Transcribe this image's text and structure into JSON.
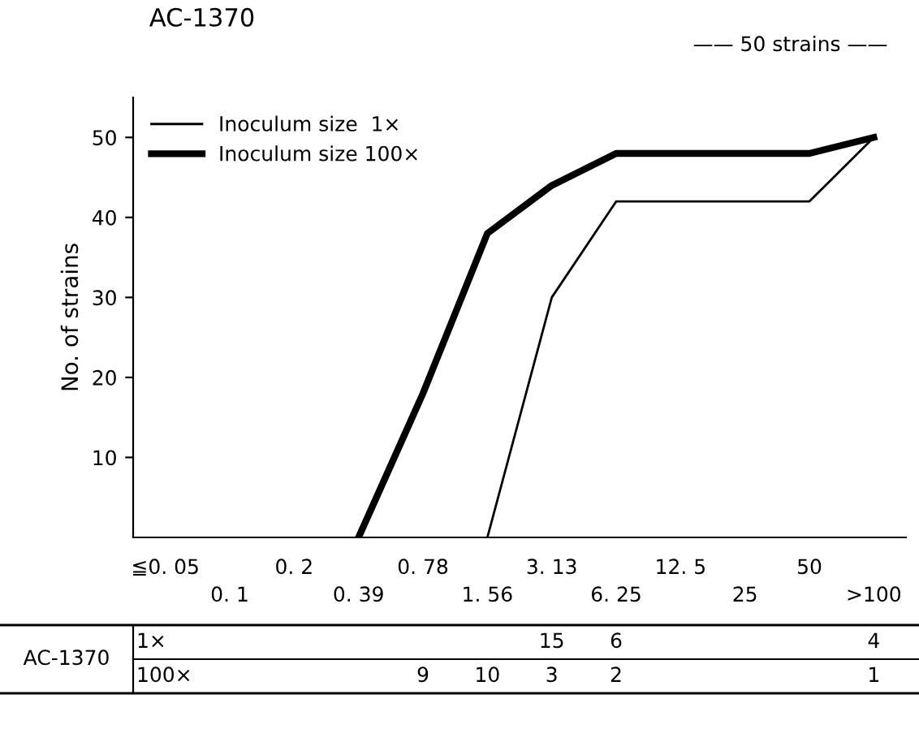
{
  "chart_data": [
    {
      "type": "line",
      "title": "AC-1370",
      "ylabel": "No. of strains",
      "categories": [
        "≦0. 05",
        "0. 1",
        "0. 2",
        "0. 39",
        "0. 78",
        "1. 56",
        "3. 13",
        "6. 25",
        "12. 5",
        "25",
        "50",
        ">100"
      ],
      "series": [
        {
          "name": "Inoculum size  1×",
          "color": "#000000",
          "values": [
            null,
            null,
            null,
            null,
            null,
            0,
            30,
            42,
            42,
            42,
            42,
            50
          ]
        },
        {
          "name": "Inoculum size 100×",
          "color": "#000000",
          "values": [
            null,
            null,
            null,
            0,
            18,
            38,
            44,
            48,
            48,
            48,
            48,
            50
          ]
        }
      ],
      "annotations": [
        "—— 50 strains ——"
      ],
      "ylim": [
        0,
        55
      ],
      "yticks": [
        10,
        20,
        30,
        40,
        50
      ],
      "grid": false,
      "legend": "top left",
      "marker": "none",
      "line_style": "solid"
    },
    {
      "type": "heatmap",
      "title": "AC-1370",
      "categories": [
        null,
        null,
        null,
        null,
        null,
        null,
        null,
        null,
        null,
        null,
        null,
        null
      ],
      "y_categories": [
        "1×",
        "100×"
      ],
      "cells": [
        [
          null,
          null,
          null,
          null,
          null,
          null,
          15,
          6,
          null,
          null,
          null,
          4
        ],
        [
          null,
          null,
          null,
          null,
          9,
          10,
          3,
          2,
          null,
          null,
          null,
          1
        ]
      ],
      "data_labels": true
    }
  ]
}
